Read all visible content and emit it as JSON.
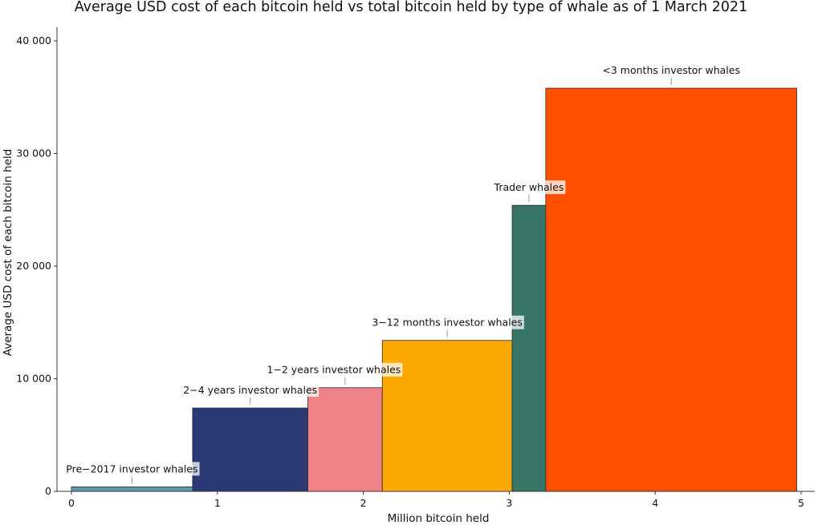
{
  "chart_data": {
    "type": "bar",
    "subtype": "variable-width",
    "title": "Average USD cost of each bitcoin held vs total bitcoin held by type of whale as of 1 March 2021",
    "xlabel": "Million bitcoin held",
    "ylabel": "Average USD cost of each bitcoin held",
    "xlim": [
      0,
      5
    ],
    "ylim": [
      0,
      42000
    ],
    "x_ticks": [
      0,
      1,
      2,
      3,
      4,
      5
    ],
    "x_tick_labels": [
      "0",
      "1",
      "2",
      "3",
      "4",
      "5"
    ],
    "y_ticks": [
      0,
      10000,
      20000,
      30000,
      40000
    ],
    "y_tick_labels": [
      "0",
      "10 000",
      "20 000",
      "30 000",
      "40 000"
    ],
    "grid": false,
    "legend": "none",
    "series": [
      {
        "name": "Pre−2017 investor whales",
        "x_start": 0.0,
        "x_end": 0.83,
        "value": 400,
        "color": "#5f9ba3"
      },
      {
        "name": "2−4 years investor whales",
        "x_start": 0.83,
        "x_end": 1.62,
        "value": 7400,
        "color": "#2b3a74"
      },
      {
        "name": "1−2 years investor whales",
        "x_start": 1.62,
        "x_end": 2.13,
        "value": 9200,
        "color": "#f08387"
      },
      {
        "name": "3−12 months investor whales",
        "x_start": 2.13,
        "x_end": 3.02,
        "value": 13400,
        "color": "#fba800"
      },
      {
        "name": "Trader whales",
        "x_start": 3.02,
        "x_end": 3.25,
        "value": 25400,
        "color": "#377566"
      },
      {
        "name": "<3 months investor whales",
        "x_start": 3.25,
        "x_end": 4.97,
        "value": 35800,
        "color": "#ff5000"
      }
    ]
  }
}
